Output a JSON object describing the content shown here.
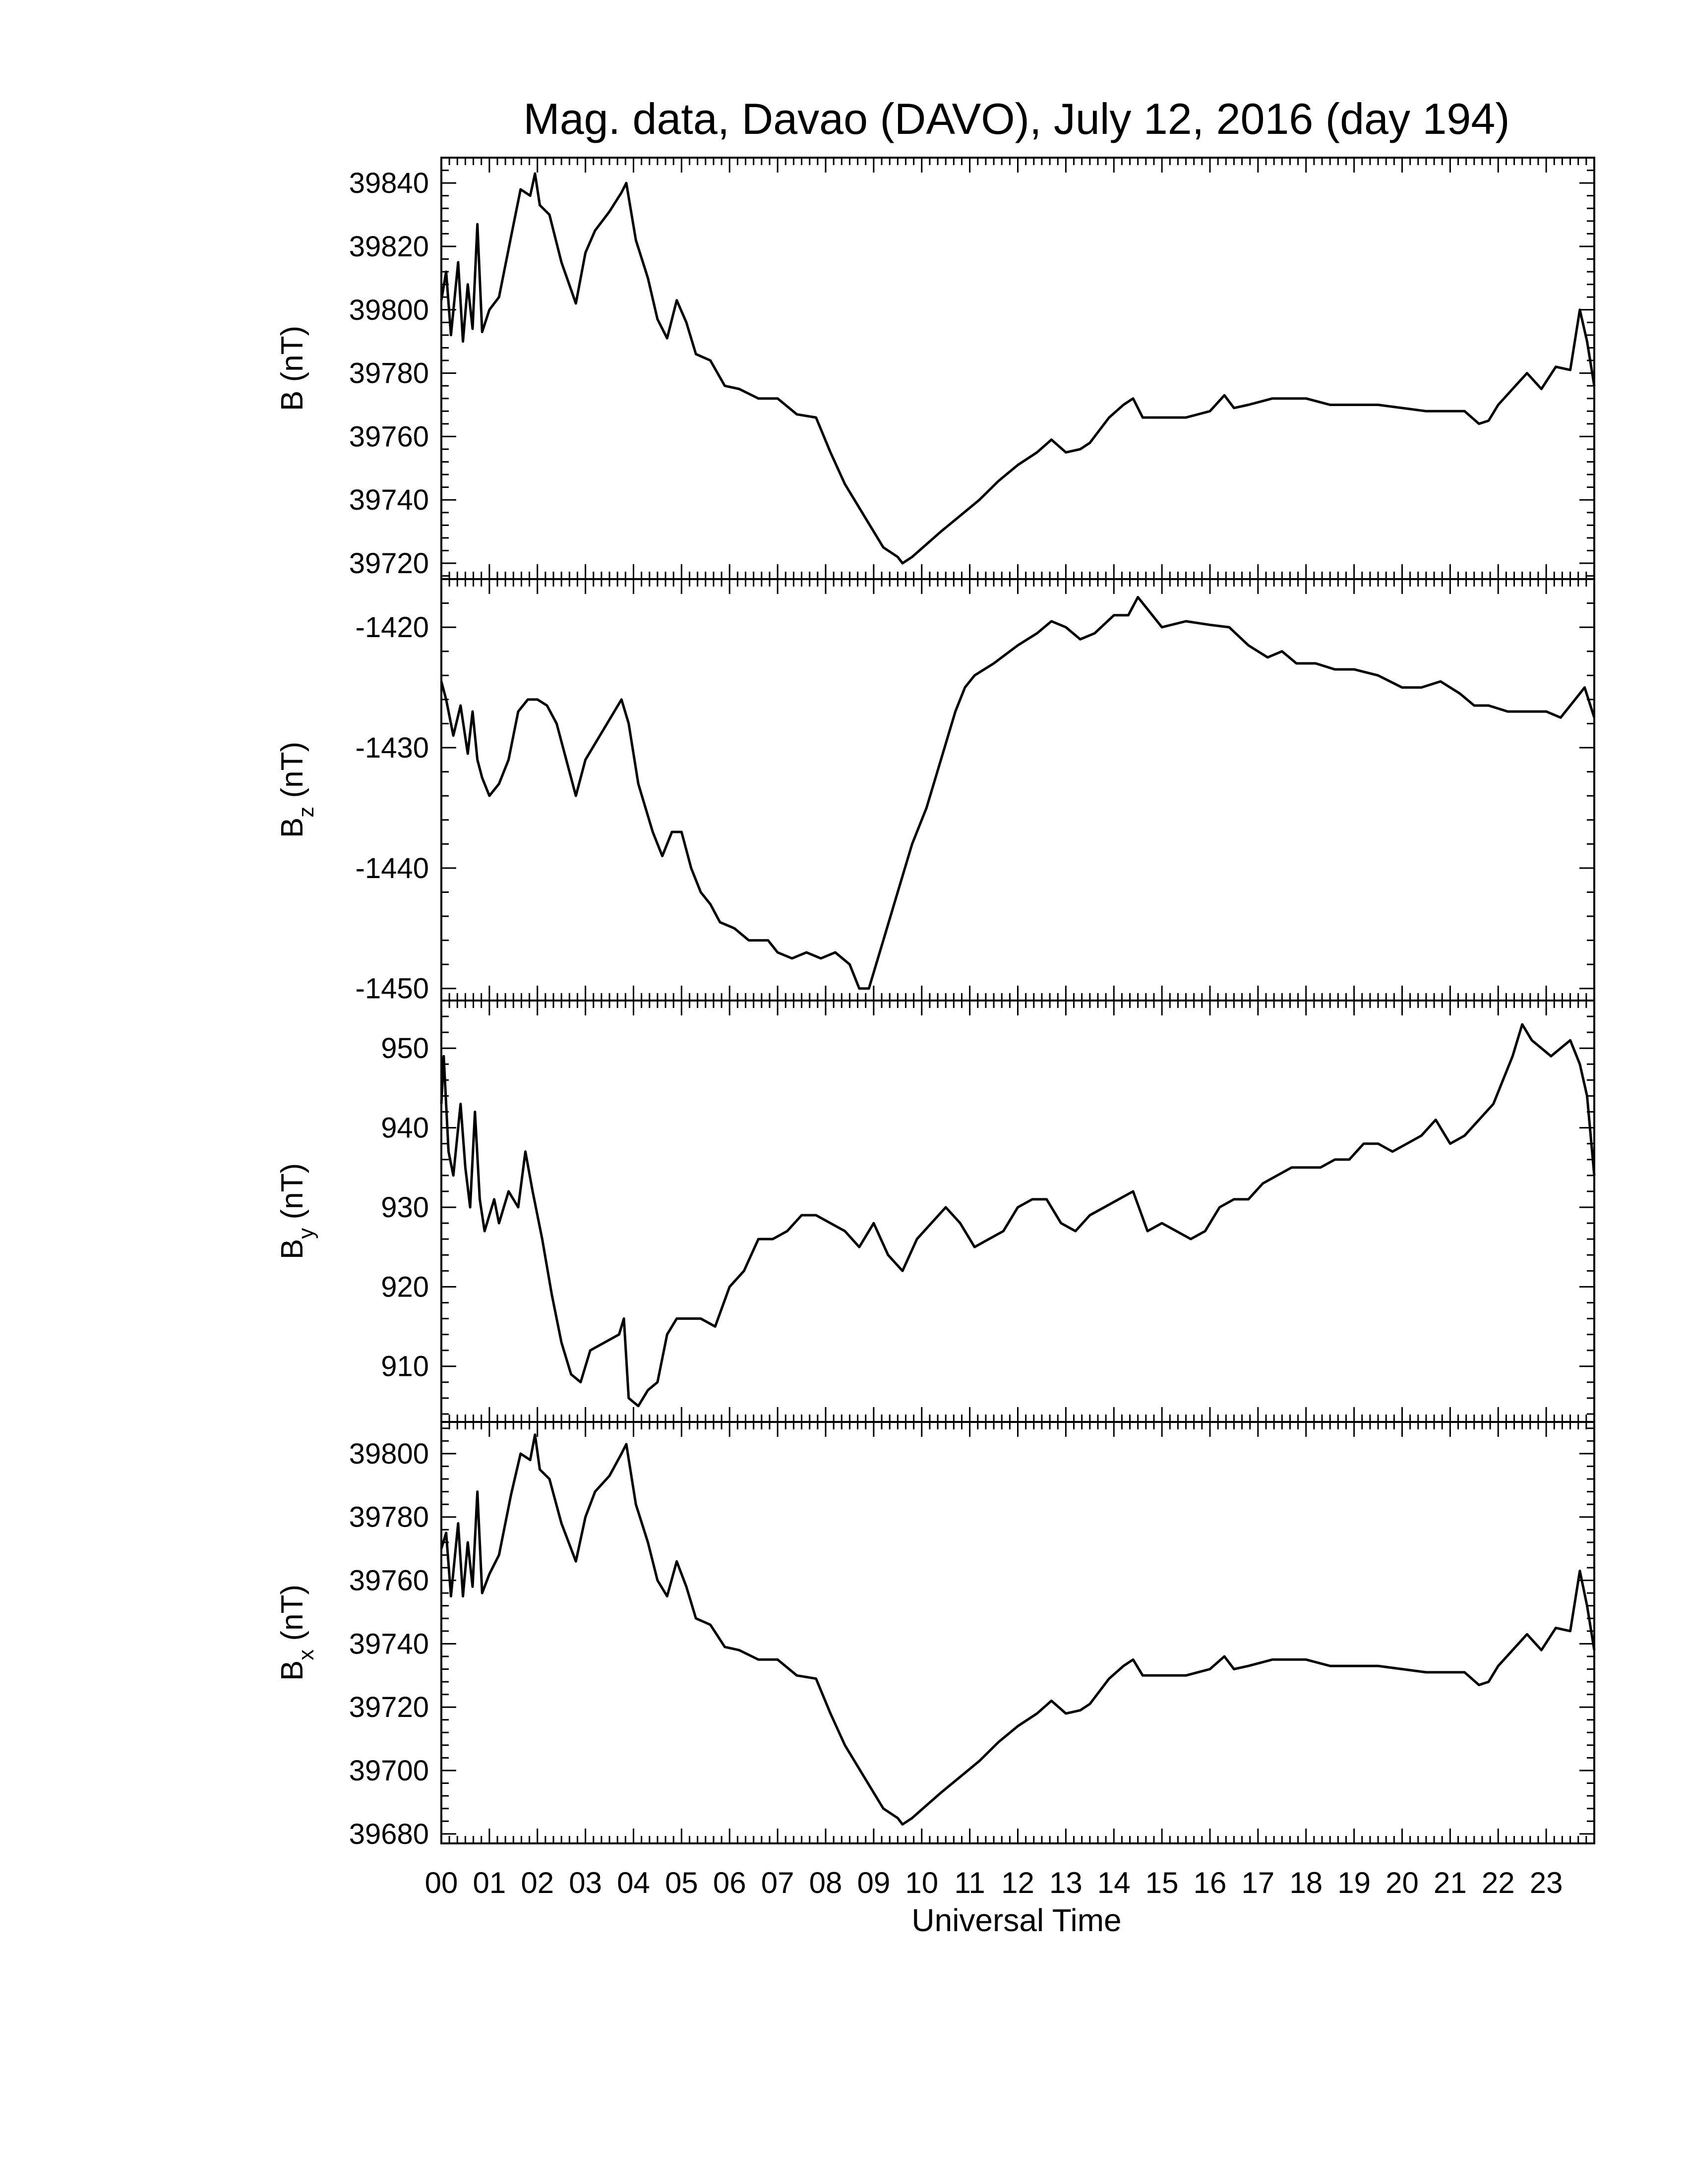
{
  "chart_data": {
    "type": "line",
    "title": "Mag. data, Davao (DAVO), July 12, 2016 (day 194)",
    "xlabel": "Universal Time",
    "xlim": [
      0,
      24
    ],
    "x_tick_labels": [
      "00",
      "01",
      "02",
      "03",
      "04",
      "05",
      "06",
      "07",
      "08",
      "09",
      "10",
      "11",
      "12",
      "13",
      "14",
      "15",
      "16",
      "17",
      "18",
      "19",
      "20",
      "21",
      "22",
      "23"
    ],
    "line_color": "#000000",
    "grid": false,
    "panels": [
      {
        "name": "B",
        "ylabel": "B (nT)",
        "ylabel_main": "B",
        "ylabel_sub": "",
        "ylabel_unit": "(nT)",
        "ylim": [
          39715,
          39848
        ],
        "yticks": [
          39720,
          39740,
          39760,
          39780,
          39800,
          39820,
          39840
        ],
        "ytick_labels": [
          "39720",
          "39740",
          "39760",
          "39780",
          "39800",
          "39820",
          "39840"
        ],
        "series": [
          {
            "x": [
              0.0,
              0.1,
              0.2,
              0.35,
              0.45,
              0.55,
              0.65,
              0.75,
              0.85,
              1.0,
              1.2,
              1.45,
              1.65,
              1.85,
              1.95,
              2.05,
              2.25,
              2.5,
              2.8,
              3.0,
              3.2,
              3.5,
              3.75,
              3.85,
              4.05,
              4.3,
              4.5,
              4.7,
              4.9,
              5.1,
              5.3,
              5.6,
              5.9,
              6.2,
              6.6,
              7.0,
              7.4,
              7.8,
              8.1,
              8.4,
              8.8,
              9.2,
              9.5,
              9.6,
              9.8,
              10.1,
              10.4,
              10.8,
              11.2,
              11.6,
              12.0,
              12.4,
              12.7,
              13.0,
              13.3,
              13.5,
              13.7,
              13.9,
              14.2,
              14.4,
              14.6,
              15.0,
              15.5,
              16.0,
              16.3,
              16.5,
              16.8,
              17.3,
              18.0,
              18.5,
              19.0,
              19.5,
              20.0,
              20.5,
              21.0,
              21.3,
              21.6,
              21.8,
              22.0,
              22.3,
              22.6,
              22.9,
              23.2,
              23.5,
              23.7,
              23.85,
              24.0
            ],
            "y": [
              39803,
              39812,
              39792,
              39815,
              39790,
              39808,
              39794,
              39827,
              39793,
              39800,
              39804,
              39823,
              39838,
              39836,
              39843,
              39833,
              39830,
              39815,
              39802,
              39818,
              39825,
              39831,
              39837,
              39840,
              39822,
              39810,
              39797,
              39791,
              39803,
              39796,
              39786,
              39784,
              39776,
              39775,
              39772,
              39772,
              39767,
              39766,
              39755,
              39745,
              39735,
              39725,
              39722,
              39720,
              39722,
              39726,
              39730,
              39735,
              39740,
              39746,
              39751,
              39755,
              39759,
              39755,
              39756,
              39758,
              39762,
              39766,
              39770,
              39772,
              39766,
              39766,
              39766,
              39768,
              39773,
              39769,
              39770,
              39772,
              39772,
              39770,
              39770,
              39770,
              39769,
              39768,
              39768,
              39768,
              39764,
              39765,
              39770,
              39775,
              39780,
              39775,
              39782,
              39781,
              39800,
              39790,
              39776
            ]
          }
        ]
      },
      {
        "name": "Bz",
        "ylabel": "Bz (nT)",
        "ylabel_main": "B",
        "ylabel_sub": "z",
        "ylabel_unit": "(nT)",
        "ylim": [
          -1451,
          -1416
        ],
        "yticks": [
          -1450,
          -1440,
          -1430,
          -1420
        ],
        "ytick_labels": [
          "-1450",
          "-1440",
          "-1430",
          "-1420"
        ],
        "series": [
          {
            "x": [
              0.0,
              0.1,
              0.25,
              0.4,
              0.55,
              0.65,
              0.75,
              0.85,
              1.0,
              1.2,
              1.4,
              1.6,
              1.8,
              2.0,
              2.2,
              2.4,
              2.6,
              2.8,
              3.0,
              3.3,
              3.6,
              3.75,
              3.9,
              4.1,
              4.4,
              4.6,
              4.8,
              5.0,
              5.2,
              5.4,
              5.6,
              5.8,
              6.1,
              6.4,
              6.8,
              7.0,
              7.3,
              7.6,
              7.9,
              8.2,
              8.5,
              8.7,
              8.9,
              9.2,
              9.5,
              9.8,
              10.1,
              10.4,
              10.7,
              10.9,
              11.1,
              11.5,
              12.0,
              12.4,
              12.7,
              13.0,
              13.3,
              13.6,
              14.0,
              14.3,
              14.5,
              14.7,
              15.0,
              15.5,
              16.0,
              16.4,
              16.8,
              17.2,
              17.5,
              17.8,
              18.2,
              18.6,
              19.0,
              19.5,
              20.0,
              20.4,
              20.8,
              21.2,
              21.5,
              21.8,
              22.2,
              22.6,
              23.0,
              23.3,
              23.6,
              23.8,
              24.0
            ],
            "y": [
              -1424.5,
              -1426,
              -1429,
              -1426.5,
              -1430.5,
              -1427,
              -1431,
              -1432.5,
              -1434,
              -1433,
              -1431,
              -1427,
              -1426,
              -1426,
              -1426.5,
              -1428,
              -1431,
              -1434,
              -1431,
              -1429,
              -1427,
              -1426,
              -1428,
              -1433,
              -1437,
              -1439,
              -1437,
              -1437,
              -1440,
              -1442,
              -1443,
              -1444.5,
              -1445,
              -1446,
              -1446,
              -1447,
              -1447.5,
              -1447,
              -1447.5,
              -1447,
              -1448,
              -1450,
              -1450,
              -1446,
              -1442,
              -1438,
              -1435,
              -1431,
              -1427,
              -1425,
              -1424,
              -1423,
              -1421.5,
              -1420.5,
              -1419.5,
              -1420,
              -1421,
              -1420.5,
              -1419,
              -1419,
              -1417.5,
              -1418.5,
              -1420,
              -1419.5,
              -1419.8,
              -1420,
              -1421.5,
              -1422.5,
              -1422,
              -1423,
              -1423,
              -1423.5,
              -1423.5,
              -1424,
              -1425,
              -1425,
              -1424.5,
              -1425.5,
              -1426.5,
              -1426.5,
              -1427,
              -1427,
              -1427,
              -1427.5,
              -1426,
              -1425,
              -1427.5
            ]
          }
        ]
      },
      {
        "name": "By",
        "ylabel": "By (nT)",
        "ylabel_main": "B",
        "ylabel_sub": "y",
        "ylabel_unit": "(nT)",
        "ylim": [
          903,
          956
        ],
        "yticks": [
          910,
          920,
          930,
          940,
          950
        ],
        "ytick_labels": [
          "910",
          "920",
          "930",
          "940",
          "950"
        ],
        "series": [
          {
            "x": [
              0.0,
              0.05,
              0.15,
              0.25,
              0.4,
              0.5,
              0.6,
              0.7,
              0.8,
              0.9,
              1.0,
              1.1,
              1.2,
              1.4,
              1.6,
              1.75,
              1.9,
              2.1,
              2.3,
              2.5,
              2.7,
              2.9,
              3.1,
              3.4,
              3.7,
              3.8,
              3.9,
              4.1,
              4.3,
              4.5,
              4.7,
              4.9,
              5.1,
              5.4,
              5.7,
              6.0,
              6.3,
              6.6,
              6.9,
              7.2,
              7.5,
              7.8,
              8.1,
              8.4,
              8.7,
              9.0,
              9.3,
              9.6,
              9.9,
              10.2,
              10.5,
              10.8,
              11.1,
              11.4,
              11.7,
              12.0,
              12.3,
              12.6,
              12.9,
              13.2,
              13.5,
              13.8,
              14.1,
              14.4,
              14.7,
              15.0,
              15.3,
              15.6,
              15.9,
              16.2,
              16.5,
              16.8,
              17.1,
              17.4,
              17.7,
              18.0,
              18.3,
              18.6,
              18.9,
              19.2,
              19.5,
              19.8,
              20.1,
              20.4,
              20.7,
              21.0,
              21.3,
              21.6,
              21.9,
              22.1,
              22.3,
              22.5,
              22.7,
              22.9,
              23.1,
              23.3,
              23.5,
              23.7,
              23.85,
              24.0
            ],
            "y": [
              943,
              949,
              937,
              934,
              943,
              935,
              930,
              942,
              931,
              927,
              929,
              931,
              928,
              932,
              930,
              937,
              932,
              926,
              919,
              913,
              909,
              908,
              912,
              913,
              914,
              916,
              906,
              905,
              907,
              908,
              914,
              916,
              916,
              916,
              915,
              920,
              922,
              926,
              926,
              927,
              929,
              929,
              928,
              927,
              925,
              928,
              924,
              922,
              926,
              928,
              930,
              928,
              925,
              926,
              927,
              930,
              931,
              931,
              928,
              927,
              929,
              930,
              931,
              932,
              927,
              928,
              927,
              926,
              927,
              930,
              931,
              931,
              933,
              934,
              935,
              935,
              935,
              936,
              936,
              938,
              938,
              937,
              938,
              939,
              941,
              938,
              939,
              941,
              943,
              946,
              949,
              953,
              951,
              950,
              949,
              950,
              951,
              948,
              944,
              934
            ]
          }
        ]
      },
      {
        "name": "Bx",
        "ylabel": "Bx (nT)",
        "ylabel_main": "B",
        "ylabel_sub": "x",
        "ylabel_unit": "(nT)",
        "ylim": [
          39677,
          39810
        ],
        "yticks": [
          39680,
          39700,
          39720,
          39740,
          39760,
          39780,
          39800
        ],
        "ytick_labels": [
          "39680",
          "39700",
          "39720",
          "39740",
          "39760",
          "39780",
          "39800"
        ],
        "series": [
          {
            "x": [
              0.0,
              0.1,
              0.2,
              0.35,
              0.45,
              0.55,
              0.65,
              0.75,
              0.85,
              1.0,
              1.2,
              1.45,
              1.65,
              1.85,
              1.95,
              2.05,
              2.25,
              2.5,
              2.8,
              3.0,
              3.2,
              3.5,
              3.75,
              3.85,
              4.05,
              4.3,
              4.5,
              4.7,
              4.9,
              5.1,
              5.3,
              5.6,
              5.9,
              6.2,
              6.6,
              7.0,
              7.4,
              7.8,
              8.1,
              8.4,
              8.8,
              9.2,
              9.5,
              9.6,
              9.8,
              10.1,
              10.4,
              10.8,
              11.2,
              11.6,
              12.0,
              12.4,
              12.7,
              13.0,
              13.3,
              13.5,
              13.7,
              13.9,
              14.2,
              14.4,
              14.6,
              15.0,
              15.5,
              16.0,
              16.3,
              16.5,
              16.8,
              17.3,
              18.0,
              18.5,
              19.0,
              19.5,
              20.0,
              20.5,
              21.0,
              21.3,
              21.6,
              21.8,
              22.0,
              22.3,
              22.6,
              22.9,
              23.2,
              23.5,
              23.7,
              23.85,
              24.0
            ],
            "y": [
              39770,
              39775,
              39755,
              39778,
              39755,
              39772,
              39758,
              39788,
              39756,
              39762,
              39768,
              39787,
              39800,
              39798,
              39806,
              39795,
              39792,
              39778,
              39766,
              39780,
              39788,
              39793,
              39800,
              39803,
              39784,
              39772,
              39760,
              39755,
              39766,
              39758,
              39748,
              39746,
              39739,
              39738,
              39735,
              39735,
              39730,
              39729,
              39718,
              39708,
              39698,
              39688,
              39685,
              39683,
              39685,
              39689,
              39693,
              39698,
              39703,
              39709,
              39714,
              39718,
              39722,
              39718,
              39719,
              39721,
              39725,
              39729,
              39733,
              39735,
              39730,
              39730,
              39730,
              39732,
              39736,
              39732,
              39733,
              39735,
              39735,
              39733,
              39733,
              39733,
              39732,
              39731,
              39731,
              39731,
              39727,
              39728,
              39733,
              39738,
              39743,
              39738,
              39745,
              39744,
              39763,
              39752,
              39738
            ]
          }
        ]
      }
    ]
  }
}
